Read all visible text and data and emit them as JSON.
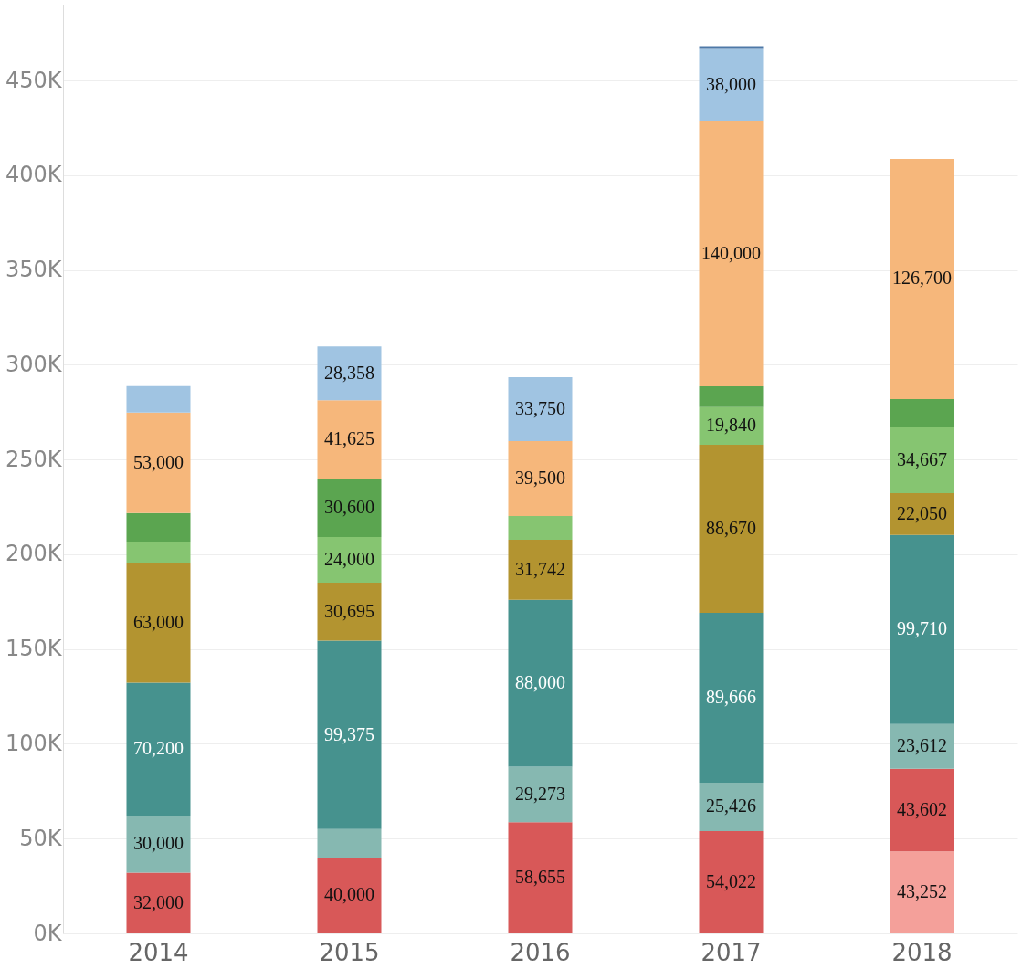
{
  "chart_data": {
    "type": "bar",
    "stacked": true,
    "categories": [
      "2014",
      "2015",
      "2016",
      "2017",
      "2018"
    ],
    "series": [
      {
        "color": "#f4a09a",
        "values": [
          null,
          null,
          null,
          null,
          43252
        ],
        "value_labels": [
          null,
          null,
          null,
          null,
          "43,252"
        ]
      },
      {
        "color": "#d85858",
        "values": [
          32000,
          40000,
          58655,
          54022,
          43602
        ],
        "value_labels": [
          "32,000",
          "40,000",
          "58,655",
          "54,022",
          "43,602"
        ]
      },
      {
        "color": "#86b8b1",
        "values": [
          30000,
          15000,
          29273,
          25426,
          23612
        ],
        "value_labels": [
          "30,000",
          null,
          "29,273",
          "25,426",
          "23,612"
        ]
      },
      {
        "color": "#46928e",
        "values": [
          70200,
          99375,
          88000,
          89666,
          99710
        ],
        "value_labels": [
          "70,200",
          "99,375",
          "88,000",
          "89,666",
          "99,710"
        ]
      },
      {
        "color": "#b39430",
        "values": [
          63000,
          30695,
          31742,
          88670,
          22050
        ],
        "value_labels": [
          "63,000",
          "30,695",
          "31,742",
          "88,670",
          "22,050"
        ]
      },
      {
        "color": "#86c571",
        "values": [
          11500,
          24000,
          12500,
          19840,
          34667
        ],
        "value_labels": [
          null,
          "24,000",
          null,
          "19,840",
          "34,667"
        ]
      },
      {
        "color": "#5ba550",
        "values": [
          15000,
          30600,
          null,
          11000,
          15000
        ],
        "value_labels": [
          null,
          "30,600",
          null,
          null,
          null
        ]
      },
      {
        "color": "#f6b77b",
        "values": [
          53000,
          41625,
          39500,
          140000,
          126700
        ],
        "value_labels": [
          "53,000",
          "41,625",
          "39,500",
          "140,000",
          "126,700"
        ]
      },
      {
        "color": "#a0c4e2",
        "values": [
          14000,
          28358,
          33750,
          38000,
          null
        ],
        "value_labels": [
          null,
          "28,358",
          "33,750",
          "38,000",
          null
        ]
      },
      {
        "color": "#4e79a7",
        "values": [
          null,
          null,
          null,
          1500,
          null
        ],
        "value_labels": [
          null,
          null,
          null,
          null,
          null
        ]
      }
    ],
    "ylim": [
      0,
      490000
    ],
    "yticks": [
      {
        "value": 0,
        "label": "0K"
      },
      {
        "value": 50000,
        "label": "50K"
      },
      {
        "value": 100000,
        "label": "100K"
      },
      {
        "value": 150000,
        "label": "150K"
      },
      {
        "value": 200000,
        "label": "200K"
      },
      {
        "value": 250000,
        "label": "250K"
      },
      {
        "value": 300000,
        "label": "300K"
      },
      {
        "value": 350000,
        "label": "350K"
      },
      {
        "value": 400000,
        "label": "400K"
      },
      {
        "value": 450000,
        "label": "450K"
      }
    ],
    "grid": "y"
  }
}
